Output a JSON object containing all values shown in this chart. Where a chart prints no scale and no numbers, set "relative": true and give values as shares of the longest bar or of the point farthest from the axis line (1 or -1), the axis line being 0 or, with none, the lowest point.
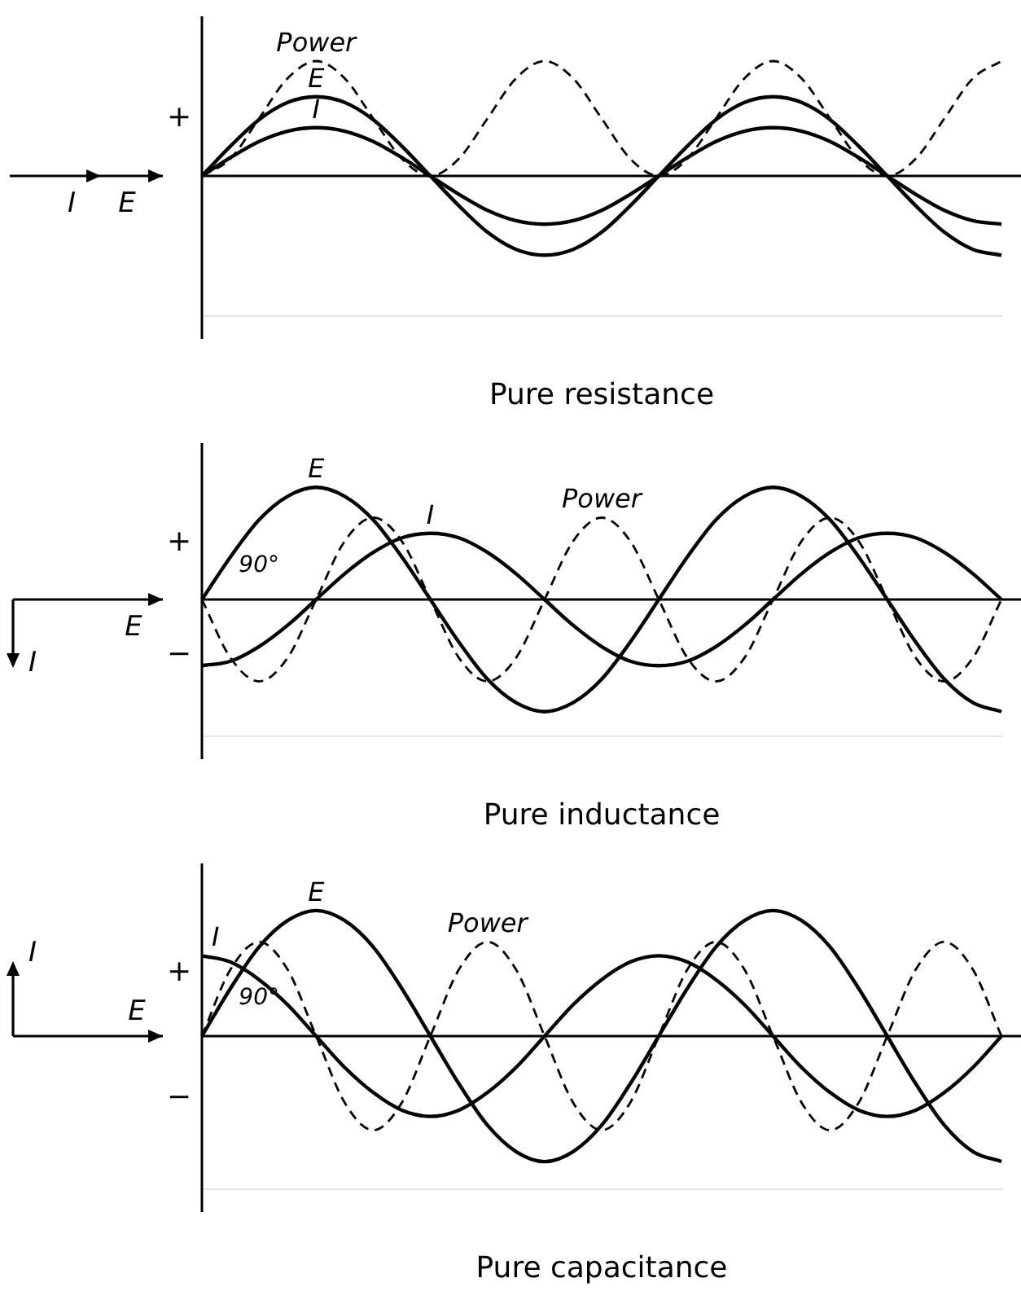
{
  "chart_data": [
    {
      "type": "line",
      "title": "Pure resistance",
      "relative": true,
      "legend": false,
      "grid": false,
      "annotations": [
        "+",
        "I",
        "E"
      ],
      "categories": [
        null,
        null,
        null,
        null,
        null,
        null,
        null,
        null,
        null,
        null,
        null,
        null,
        null,
        null,
        null,
        null,
        null,
        null,
        null,
        null,
        null,
        null,
        null,
        null,
        null,
        null,
        null,
        null,
        null
      ],
      "series": [
        {
          "name": "Power",
          "color": "#000000",
          "line_style": "dashed",
          "values": [
            0,
            0.15,
            0.5,
            0.85,
            1,
            0.85,
            0.5,
            0.15,
            0,
            0.15,
            0.5,
            0.85,
            1,
            0.85,
            0.5,
            0.15,
            0,
            0.15,
            0.5,
            0.85,
            1,
            0.85,
            0.5,
            0.15,
            0,
            0.15,
            0.5,
            0.85,
            1
          ]
        },
        {
          "name": "E",
          "color": "#000000",
          "line_style": "solid",
          "values": [
            0,
            0.26,
            0.49,
            0.64,
            0.69,
            0.64,
            0.49,
            0.26,
            0,
            -0.26,
            -0.49,
            -0.64,
            -0.69,
            -0.64,
            -0.49,
            -0.26,
            0,
            0.26,
            0.49,
            0.64,
            0.69,
            0.64,
            0.49,
            0.26,
            0,
            -0.26,
            -0.49,
            -0.64,
            -0.69
          ]
        },
        {
          "name": "I",
          "color": "#000000",
          "line_style": "solid",
          "values": [
            0,
            0.16,
            0.3,
            0.39,
            0.42,
            0.39,
            0.3,
            0.16,
            0,
            -0.16,
            -0.3,
            -0.39,
            -0.42,
            -0.39,
            -0.3,
            -0.16,
            0,
            0.16,
            0.3,
            0.39,
            0.42,
            0.39,
            0.3,
            0.16,
            0,
            -0.16,
            -0.3,
            -0.39,
            -0.42
          ]
        }
      ]
    },
    {
      "type": "line",
      "title": "Pure inductance",
      "relative": true,
      "legend": false,
      "grid": false,
      "annotations": [
        "+",
        "−",
        "90°",
        "E",
        "I"
      ],
      "categories": [
        null,
        null,
        null,
        null,
        null,
        null,
        null,
        null,
        null,
        null,
        null,
        null,
        null,
        null,
        null,
        null,
        null,
        null,
        null,
        null,
        null,
        null,
        null,
        null,
        null,
        null,
        null,
        null,
        null
      ],
      "series": [
        {
          "name": "E",
          "color": "#000000",
          "line_style": "solid",
          "values": [
            0,
            0.38,
            0.71,
            0.92,
            1,
            0.92,
            0.71,
            0.38,
            0,
            -0.38,
            -0.71,
            -0.92,
            -1,
            -0.92,
            -0.71,
            -0.38,
            0,
            0.38,
            0.71,
            0.92,
            1,
            0.92,
            0.71,
            0.38,
            0,
            -0.38,
            -0.71,
            -0.92,
            -1
          ]
        },
        {
          "name": "I",
          "color": "#000000",
          "line_style": "solid",
          "values": [
            -0.59,
            -0.55,
            -0.42,
            -0.23,
            0,
            0.23,
            0.42,
            0.55,
            0.59,
            0.55,
            0.42,
            0.23,
            0,
            -0.23,
            -0.42,
            -0.55,
            -0.59,
            -0.55,
            -0.42,
            -0.23,
            0,
            0.23,
            0.42,
            0.55,
            0.59,
            0.55,
            0.42,
            0.23,
            0
          ]
        },
        {
          "name": "Power",
          "color": "#000000",
          "line_style": "dashed",
          "values": [
            0,
            -0.52,
            -0.73,
            -0.52,
            0,
            0.52,
            0.73,
            0.52,
            0,
            -0.52,
            -0.73,
            -0.52,
            0,
            0.52,
            0.73,
            0.52,
            0,
            -0.52,
            -0.73,
            -0.52,
            0,
            0.52,
            0.73,
            0.52,
            0,
            -0.52,
            -0.73,
            -0.52,
            0
          ]
        }
      ]
    },
    {
      "type": "line",
      "title": "Pure capacitance",
      "relative": true,
      "legend": false,
      "grid": false,
      "annotations": [
        "+",
        "−",
        "90°",
        "E",
        "I"
      ],
      "categories": [
        null,
        null,
        null,
        null,
        null,
        null,
        null,
        null,
        null,
        null,
        null,
        null,
        null,
        null,
        null,
        null,
        null,
        null,
        null,
        null,
        null,
        null,
        null,
        null,
        null,
        null,
        null,
        null,
        null
      ],
      "series": [
        {
          "name": "E",
          "color": "#000000",
          "line_style": "solid",
          "values": [
            0,
            0.38,
            0.71,
            0.92,
            1,
            0.92,
            0.71,
            0.38,
            0,
            -0.38,
            -0.71,
            -0.92,
            -1,
            -0.92,
            -0.71,
            -0.38,
            0,
            0.38,
            0.71,
            0.92,
            1,
            0.92,
            0.71,
            0.38,
            0,
            -0.38,
            -0.71,
            -0.92,
            -1
          ]
        },
        {
          "name": "I",
          "color": "#000000",
          "line_style": "solid",
          "values": [
            0.64,
            0.59,
            0.45,
            0.25,
            0,
            -0.25,
            -0.45,
            -0.59,
            -0.64,
            -0.59,
            -0.45,
            -0.25,
            0,
            0.25,
            0.45,
            0.59,
            0.64,
            0.59,
            0.45,
            0.25,
            0,
            -0.25,
            -0.45,
            -0.59,
            -0.64,
            -0.59,
            -0.45,
            -0.25,
            0
          ]
        },
        {
          "name": "Power",
          "color": "#000000",
          "line_style": "dashed",
          "values": [
            0,
            0.53,
            0.75,
            0.53,
            0,
            -0.53,
            -0.75,
            -0.53,
            0,
            0.53,
            0.75,
            0.53,
            0,
            -0.53,
            -0.75,
            -0.53,
            0,
            0.53,
            0.75,
            0.53,
            0,
            -0.53,
            -0.75,
            -0.53,
            0,
            0.53,
            0.75,
            0.53,
            0
          ]
        }
      ]
    }
  ]
}
